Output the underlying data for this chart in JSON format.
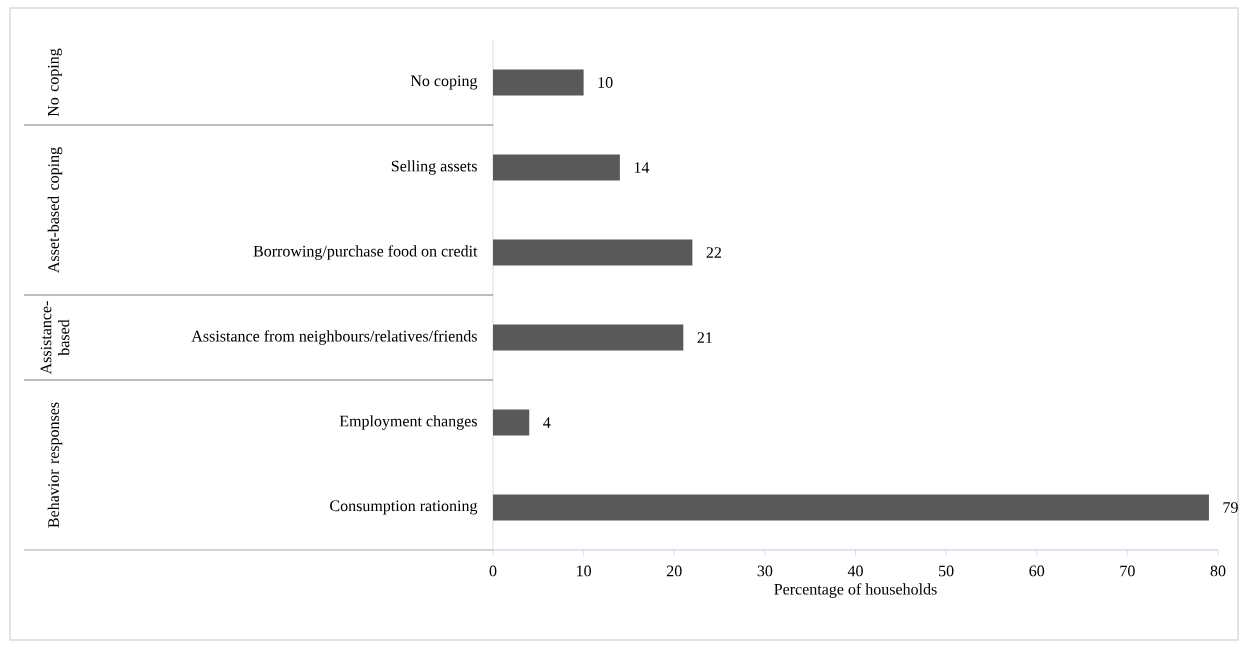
{
  "chart_data": {
    "type": "bar",
    "orientation": "horizontal",
    "xlabel": "Percentage of households",
    "categories": [
      "No coping",
      "Selling assets",
      "Borrowing/purchase food on credit",
      "Assistance from neighbours/relatives/friends",
      "Employment changes",
      "Consumption rationing"
    ],
    "values": [
      10,
      14,
      22,
      21,
      4,
      79
    ],
    "color": "#595959",
    "data_labels": true,
    "xlim": [
      0,
      80
    ],
    "xticks": [
      0,
      10,
      20,
      30,
      40,
      50,
      60,
      70,
      80
    ],
    "grid": false,
    "annotations": [
      "No coping",
      "Asset-based coping",
      "Assistance-based",
      "Behavior responses"
    ]
  }
}
